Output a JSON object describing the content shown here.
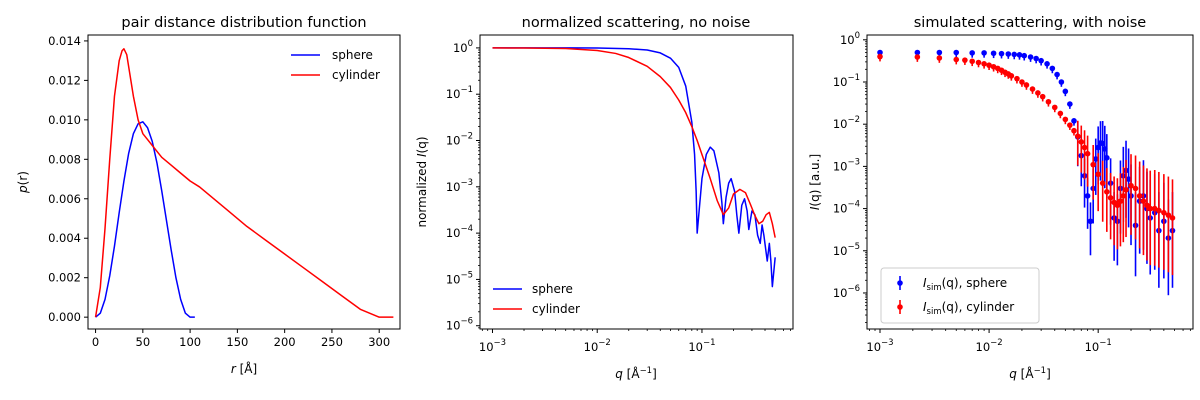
{
  "figure": {
    "background": "#ffffff"
  },
  "colors": {
    "sphere": "#0000ff",
    "cylinder": "#ff0000"
  },
  "chart_data": [
    {
      "type": "line",
      "title": "pair distance distribution function",
      "xlabel_main": "r",
      "xlabel_unit": " [Å]",
      "ylabel_main": "p",
      "ylabel_paren": "(r)",
      "xscale": "linear",
      "yscale": "linear",
      "xlim": [
        -8,
        322
      ],
      "ylim": [
        -0.0006,
        0.0143
      ],
      "xticks": [
        0,
        50,
        100,
        150,
        200,
        250,
        300
      ],
      "xtick_labels": [
        "0",
        "50",
        "100",
        "150",
        "200",
        "250",
        "300"
      ],
      "yticks": [
        0,
        0.002,
        0.004,
        0.006,
        0.008,
        0.01,
        0.012,
        0.014
      ],
      "ytick_labels": [
        "0.000",
        "0.002",
        "0.004",
        "0.006",
        "0.008",
        "0.010",
        "0.012",
        "0.014"
      ],
      "legend_position": "upper right",
      "series": [
        {
          "name": "sphere",
          "x": [
            0,
            5,
            10,
            15,
            20,
            25,
            30,
            35,
            40,
            45,
            50,
            55,
            60,
            65,
            70,
            75,
            80,
            85,
            90,
            95,
            100,
            105
          ],
          "y": [
            0,
            0.0002,
            0.0009,
            0.0021,
            0.0036,
            0.0053,
            0.0069,
            0.0083,
            0.0093,
            0.0098,
            0.0099,
            0.0096,
            0.0089,
            0.0078,
            0.0064,
            0.0049,
            0.0034,
            0.002,
            0.0009,
            0.0002,
            0,
            0
          ]
        },
        {
          "name": "cylinder",
          "x": [
            0,
            5,
            10,
            15,
            20,
            25,
            28,
            30,
            33,
            36,
            40,
            45,
            50,
            55,
            60,
            65,
            70,
            80,
            90,
            100,
            110,
            120,
            140,
            160,
            180,
            200,
            220,
            240,
            260,
            280,
            300,
            305,
            315
          ],
          "y": [
            0,
            0.0015,
            0.0045,
            0.008,
            0.0112,
            0.013,
            0.0135,
            0.0136,
            0.0133,
            0.0124,
            0.0112,
            0.01,
            0.0093,
            0.009,
            0.0087,
            0.0084,
            0.0081,
            0.0077,
            0.0073,
            0.0069,
            0.0066,
            0.0062,
            0.0054,
            0.0046,
            0.0039,
            0.0032,
            0.0025,
            0.0018,
            0.0011,
            0.0004,
            0.0,
            0,
            0
          ]
        }
      ]
    },
    {
      "type": "line",
      "title": "normalized scattering, no noise",
      "xlabel_main": "q",
      "xlabel_unit": " [Å",
      "xlabel_unit_sup": "−1",
      "xlabel_unit_end": "]",
      "ylabel_pre": "normalized ",
      "ylabel_main": "I",
      "ylabel_paren": "(q)",
      "xscale": "log",
      "yscale": "log",
      "xlim": [
        0.00076,
        0.74
      ],
      "ylim": [
        8.5e-07,
        1.9
      ],
      "xticks": [
        0.001,
        0.01,
        0.1
      ],
      "xtick_labels": [
        [
          "10",
          "−3"
        ],
        [
          "10",
          "−2"
        ],
        [
          "10",
          "−1"
        ]
      ],
      "yticks": [
        1e-06,
        1e-05,
        0.0001,
        0.001,
        0.01,
        0.1,
        1
      ],
      "ytick_labels": [
        [
          "10",
          "−6"
        ],
        [
          "10",
          "−5"
        ],
        [
          "10",
          "−4"
        ],
        [
          "10",
          "−3"
        ],
        [
          "10",
          "−2"
        ],
        [
          "10",
          "−1"
        ],
        [
          "10",
          "0"
        ]
      ],
      "legend_position": "lower left",
      "series": [
        {
          "name": "sphere",
          "x": [
            0.001,
            0.002,
            0.005,
            0.01,
            0.02,
            0.03,
            0.04,
            0.05,
            0.06,
            0.07,
            0.08,
            0.085,
            0.088,
            0.09,
            0.1,
            0.11,
            0.12,
            0.13,
            0.145,
            0.155,
            0.16,
            0.17,
            0.18,
            0.19,
            0.205,
            0.215,
            0.225,
            0.24,
            0.255,
            0.27,
            0.28,
            0.3,
            0.32,
            0.34,
            0.36,
            0.375,
            0.39,
            0.42,
            0.44,
            0.455,
            0.47,
            0.5
          ],
          "y": [
            1,
            1,
            0.999,
            0.995,
            0.96,
            0.9,
            0.78,
            0.6,
            0.38,
            0.15,
            0.025,
            0.005,
            0.0008,
            0.0001,
            0.0015,
            0.005,
            0.0072,
            0.006,
            0.002,
            0.00045,
            0.00016,
            0.0006,
            0.0012,
            0.0015,
            0.0008,
            0.00025,
            0.0001,
            0.0004,
            0.00055,
            0.0003,
            0.00012,
            0.0003,
            0.00025,
            9e-05,
            6e-05,
            0.00015,
            9e-05,
            2.5e-05,
            6e-05,
            2.5e-05,
            7e-06,
            3e-05
          ]
        },
        {
          "name": "cylinder",
          "x": [
            0.001,
            0.002,
            0.005,
            0.01,
            0.015,
            0.02,
            0.03,
            0.04,
            0.05,
            0.06,
            0.07,
            0.08,
            0.09,
            0.1,
            0.12,
            0.14,
            0.16,
            0.18,
            0.2,
            0.23,
            0.26,
            0.29,
            0.32,
            0.35,
            0.38,
            0.41,
            0.44,
            0.47,
            0.5
          ],
          "y": [
            1,
            0.995,
            0.97,
            0.88,
            0.76,
            0.62,
            0.4,
            0.24,
            0.14,
            0.075,
            0.04,
            0.02,
            0.01,
            0.005,
            0.0015,
            0.0005,
            0.00025,
            0.00035,
            0.0007,
            0.00088,
            0.00075,
            0.00042,
            0.00024,
            0.00016,
            0.00018,
            0.00025,
            0.00028,
            0.00016,
            8e-05
          ]
        }
      ]
    },
    {
      "type": "scatter",
      "title": "simulated scattering, with noise",
      "xlabel_main": "q",
      "xlabel_unit": " [Å",
      "xlabel_unit_sup": "−1",
      "xlabel_unit_end": "]",
      "ylabel_main": "I",
      "ylabel_paren": "(q) [a.u.]",
      "xscale": "log",
      "yscale": "log",
      "xlim": [
        0.00076,
        0.74
      ],
      "ylim": [
        1.4e-07,
        1.3
      ],
      "xticks": [
        0.001,
        0.01,
        0.1
      ],
      "xtick_labels": [
        [
          "10",
          "−3"
        ],
        [
          "10",
          "−2"
        ],
        [
          "10",
          "−1"
        ]
      ],
      "yticks": [
        1e-06,
        1e-05,
        0.0001,
        0.001,
        0.01,
        0.1,
        1
      ],
      "ytick_labels": [
        [
          "10",
          "−6"
        ],
        [
          "10",
          "−5"
        ],
        [
          "10",
          "−4"
        ],
        [
          "10",
          "−3"
        ],
        [
          "10",
          "−2"
        ],
        [
          "10",
          "−1"
        ],
        [
          "10",
          "0"
        ]
      ],
      "legend_position": "lower left",
      "legend_entries": [
        {
          "main": "I",
          "sub": "sim",
          "rest": "(q), sphere"
        },
        {
          "main": "I",
          "sub": "sim",
          "rest": "(q), cylinder"
        }
      ],
      "series": [
        {
          "name": "sphere",
          "x": [
            0.001,
            0.0022,
            0.0035,
            0.005,
            0.007,
            0.009,
            0.011,
            0.013,
            0.015,
            0.017,
            0.019,
            0.021,
            0.024,
            0.027,
            0.03,
            0.034,
            0.038,
            0.042,
            0.046,
            0.05,
            0.055,
            0.06,
            0.065,
            0.07,
            0.075,
            0.08,
            0.085,
            0.09,
            0.095,
            0.1,
            0.105,
            0.11,
            0.115,
            0.12,
            0.13,
            0.14,
            0.15,
            0.16,
            0.17,
            0.18,
            0.19,
            0.2,
            0.22,
            0.24,
            0.26,
            0.28,
            0.3,
            0.33,
            0.36,
            0.4,
            0.44,
            0.48
          ],
          "y": [
            0.5,
            0.5,
            0.5,
            0.5,
            0.49,
            0.49,
            0.48,
            0.47,
            0.46,
            0.45,
            0.44,
            0.42,
            0.39,
            0.36,
            0.32,
            0.27,
            0.21,
            0.15,
            0.1,
            0.06,
            0.03,
            0.012,
            0.005,
            0.0018,
            0.0006,
            0.0002,
            5e-05,
            0.0003,
            0.0015,
            0.0028,
            0.0036,
            0.0035,
            0.0026,
            0.0016,
            0.0004,
            6e-05,
            5e-05,
            0.0003,
            0.0006,
            0.0008,
            0.0005,
            0.0002,
            4e-05,
            0.00015,
            0.0002,
            0.0001,
            6e-05,
            8e-05,
            3e-05,
            5e-05,
            2e-05,
            3e-05
          ]
        },
        {
          "name": "cylinder",
          "x": [
            0.001,
            0.0022,
            0.0035,
            0.005,
            0.006,
            0.007,
            0.008,
            0.009,
            0.01,
            0.011,
            0.012,
            0.013,
            0.014,
            0.015,
            0.016,
            0.018,
            0.02,
            0.022,
            0.025,
            0.028,
            0.031,
            0.035,
            0.04,
            0.045,
            0.05,
            0.055,
            0.06,
            0.065,
            0.07,
            0.075,
            0.08,
            0.09,
            0.1,
            0.11,
            0.12,
            0.13,
            0.14,
            0.15,
            0.16,
            0.17,
            0.18,
            0.2,
            0.22,
            0.24,
            0.26,
            0.28,
            0.3,
            0.33,
            0.36,
            0.4,
            0.44,
            0.48
          ],
          "y": [
            0.4,
            0.39,
            0.37,
            0.34,
            0.33,
            0.31,
            0.29,
            0.27,
            0.25,
            0.23,
            0.21,
            0.19,
            0.17,
            0.155,
            0.14,
            0.12,
            0.1,
            0.085,
            0.068,
            0.055,
            0.045,
            0.034,
            0.025,
            0.018,
            0.013,
            0.0095,
            0.007,
            0.0052,
            0.0038,
            0.0028,
            0.002,
            0.0011,
            0.00065,
            0.0004,
            0.00025,
            0.00018,
            0.00014,
            0.00012,
            0.00015,
            0.0002,
            0.00028,
            0.00035,
            0.0003,
            0.0002,
            0.00015,
            0.00012,
            0.0001,
            0.0001,
            9e-05,
            8e-05,
            7e-05,
            6e-05
          ]
        }
      ]
    }
  ]
}
